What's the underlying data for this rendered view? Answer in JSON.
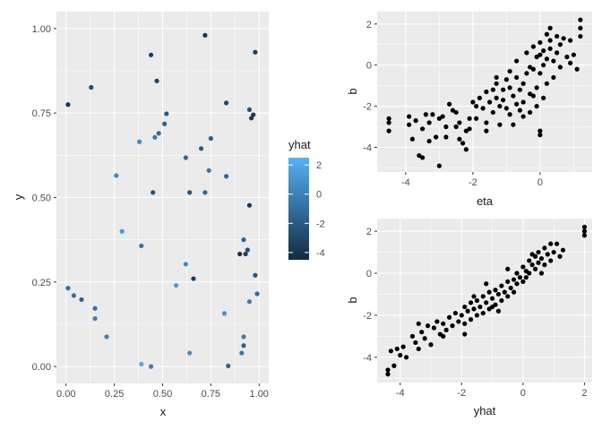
{
  "chart_data": [
    {
      "type": "scatter",
      "xlabel": "x",
      "ylabel": "y",
      "xlim": [
        -0.05,
        1.05
      ],
      "ylim": [
        -0.05,
        1.05
      ],
      "xticks": [
        0,
        0.25,
        0.5,
        0.75,
        1
      ],
      "xtick_labels": [
        "0.00",
        "0.25",
        "0.50",
        "0.75",
        "1.00"
      ],
      "yticks": [
        0,
        0.25,
        0.5,
        0.75,
        1
      ],
      "ytick_labels": [
        "0.00",
        "0.25",
        "0.50",
        "0.75",
        "1.00"
      ],
      "grid": true,
      "color_by": "yhat",
      "legend": {
        "title": "yhat",
        "placement": "right",
        "ticks": [
          2,
          0,
          -2,
          -4
        ],
        "tick_labels": [
          "2",
          "0",
          "-2",
          "-4"
        ],
        "range": [
          -4.5,
          2.5
        ],
        "color_low": "#132B43",
        "color_high": "#56B1F7"
      },
      "points": [
        {
          "x": 0.01,
          "y": 0.775,
          "yhat": -3.8
        },
        {
          "x": 0.13,
          "y": 0.826,
          "yhat": -2.8
        },
        {
          "x": 0.44,
          "y": 0.922,
          "yhat": -3.6
        },
        {
          "x": 0.47,
          "y": 0.845,
          "yhat": -3.2
        },
        {
          "x": 0.72,
          "y": 0.98,
          "yhat": -4.0
        },
        {
          "x": 0.98,
          "y": 0.93,
          "yhat": -3.4
        },
        {
          "x": 0.83,
          "y": 0.78,
          "yhat": -3.0
        },
        {
          "x": 0.95,
          "y": 0.76,
          "yhat": -2.6
        },
        {
          "x": 0.97,
          "y": 0.745,
          "yhat": -3.6
        },
        {
          "x": 0.96,
          "y": 0.735,
          "yhat": -3.8
        },
        {
          "x": 0.52,
          "y": 0.748,
          "yhat": -2.2
        },
        {
          "x": 0.51,
          "y": 0.718,
          "yhat": -1.6
        },
        {
          "x": 0.48,
          "y": 0.69,
          "yhat": -1.2
        },
        {
          "x": 0.46,
          "y": 0.678,
          "yhat": -0.6
        },
        {
          "x": 0.38,
          "y": 0.665,
          "yhat": 0.5
        },
        {
          "x": 0.75,
          "y": 0.675,
          "yhat": -1.8
        },
        {
          "x": 0.7,
          "y": 0.645,
          "yhat": -2.2
        },
        {
          "x": 0.62,
          "y": 0.618,
          "yhat": -1.4
        },
        {
          "x": 0.74,
          "y": 0.58,
          "yhat": -0.6
        },
        {
          "x": 0.83,
          "y": 0.563,
          "yhat": -1.4
        },
        {
          "x": 0.26,
          "y": 0.565,
          "yhat": 0.2
        },
        {
          "x": 0.45,
          "y": 0.515,
          "yhat": -2.6
        },
        {
          "x": 0.64,
          "y": 0.515,
          "yhat": -2.4
        },
        {
          "x": 0.72,
          "y": 0.515,
          "yhat": -1.4
        },
        {
          "x": 0.95,
          "y": 0.477,
          "yhat": -4.0
        },
        {
          "x": 0.29,
          "y": 0.4,
          "yhat": 1.2
        },
        {
          "x": 0.39,
          "y": 0.357,
          "yhat": -0.8
        },
        {
          "x": 0.92,
          "y": 0.375,
          "yhat": -1.8
        },
        {
          "x": 0.94,
          "y": 0.345,
          "yhat": -2.6
        },
        {
          "x": 0.9,
          "y": 0.333,
          "yhat": -4.0
        },
        {
          "x": 0.93,
          "y": 0.333,
          "yhat": -3.4
        },
        {
          "x": 0.62,
          "y": 0.303,
          "yhat": 0.5
        },
        {
          "x": 0.98,
          "y": 0.27,
          "yhat": -2.2
        },
        {
          "x": 0.66,
          "y": 0.26,
          "yhat": -3.6
        },
        {
          "x": 0.57,
          "y": 0.24,
          "yhat": 1.4
        },
        {
          "x": 0.01,
          "y": 0.232,
          "yhat": -1.0
        },
        {
          "x": 0.04,
          "y": 0.21,
          "yhat": -1.0
        },
        {
          "x": 0.08,
          "y": 0.198,
          "yhat": -1.8
        },
        {
          "x": 0.99,
          "y": 0.215,
          "yhat": -1.2
        },
        {
          "x": 0.95,
          "y": 0.192,
          "yhat": -0.4
        },
        {
          "x": 0.15,
          "y": 0.172,
          "yhat": -0.8
        },
        {
          "x": 0.15,
          "y": 0.142,
          "yhat": -0.2
        },
        {
          "x": 0.82,
          "y": 0.157,
          "yhat": 0.6
        },
        {
          "x": 0.21,
          "y": 0.088,
          "yhat": -0.2
        },
        {
          "x": 0.92,
          "y": 0.088,
          "yhat": -0.6
        },
        {
          "x": 0.92,
          "y": 0.062,
          "yhat": -1.8
        },
        {
          "x": 0.64,
          "y": 0.04,
          "yhat": 0.8
        },
        {
          "x": 0.91,
          "y": 0.04,
          "yhat": -0.6
        },
        {
          "x": 0.39,
          "y": 0.007,
          "yhat": 2.0
        },
        {
          "x": 0.44,
          "y": 0.0,
          "yhat": -0.2
        },
        {
          "x": 0.84,
          "y": 0.002,
          "yhat": -1.6
        }
      ]
    },
    {
      "type": "scatter",
      "xlabel": "eta",
      "ylabel": "b",
      "xlim": [
        -4.85,
        1.55
      ],
      "ylim": [
        -5.2,
        2.6
      ],
      "xticks": [
        -4,
        -2,
        0
      ],
      "xtick_labels": [
        "-4",
        "-2",
        "0"
      ],
      "yticks": [
        2,
        0,
        -2,
        -4
      ],
      "ytick_labels": [
        "2",
        "0",
        "-2",
        "-4"
      ],
      "grid": true,
      "points": [
        [
          -4.5,
          -2.6
        ],
        [
          -4.5,
          -2.8
        ],
        [
          -4.5,
          -3.2
        ],
        [
          -3.9,
          -2.5
        ],
        [
          -3.9,
          -2.9
        ],
        [
          -3.8,
          -3.6
        ],
        [
          -3.7,
          -2.7
        ],
        [
          -3.6,
          -4.4
        ],
        [
          -3.5,
          -4.5
        ],
        [
          -3.5,
          -3.1
        ],
        [
          -3.4,
          -2.4
        ],
        [
          -3.3,
          -2.8
        ],
        [
          -3.3,
          -3.7
        ],
        [
          -3.2,
          -2.4
        ],
        [
          -3.1,
          -3.5
        ],
        [
          -3.0,
          -2.6
        ],
        [
          -3.0,
          -4.9
        ],
        [
          -2.9,
          -2.5
        ],
        [
          -2.8,
          -3.5
        ],
        [
          -2.7,
          -1.9
        ],
        [
          -2.6,
          -2.2
        ],
        [
          -2.5,
          -3.0
        ],
        [
          -2.4,
          -2.8
        ],
        [
          -2.4,
          -3.6
        ],
        [
          -2.3,
          -3.8
        ],
        [
          -2.2,
          -3.2
        ],
        [
          -2.2,
          -4.1
        ],
        [
          -2.1,
          -2.6
        ],
        [
          -2.1,
          -3.1
        ],
        [
          -1.9,
          -2.0
        ],
        [
          -1.8,
          -1.6
        ],
        [
          -1.7,
          -2.1
        ],
        [
          -1.6,
          -2.8
        ],
        [
          -1.6,
          -3.2
        ],
        [
          -1.5,
          -1.8
        ],
        [
          -1.4,
          -1.2
        ],
        [
          -1.4,
          -2.3
        ],
        [
          -1.3,
          -0.9
        ],
        [
          -1.3,
          -1.6
        ],
        [
          -1.2,
          -2.0
        ],
        [
          -1.2,
          -2.9
        ],
        [
          -1.1,
          -1.2
        ],
        [
          -1.1,
          -1.7
        ],
        [
          -1.0,
          -0.7
        ],
        [
          -1.0,
          -2.1
        ],
        [
          -0.9,
          -0.3
        ],
        [
          -0.9,
          -1.1
        ],
        [
          -0.9,
          -2.4
        ],
        [
          -0.8,
          -1.5
        ],
        [
          -0.8,
          -2.9
        ],
        [
          -0.7,
          0.2
        ],
        [
          -0.7,
          -0.6
        ],
        [
          -0.7,
          -1.9
        ],
        [
          -0.6,
          -1.2
        ],
        [
          -0.6,
          -2.2
        ],
        [
          -0.5,
          -1.8
        ],
        [
          -0.5,
          -2.5
        ],
        [
          -0.4,
          0.6
        ],
        [
          -0.4,
          -0.4
        ],
        [
          -0.3,
          -1.4
        ],
        [
          -0.3,
          -2.3
        ],
        [
          -0.2,
          0.9
        ],
        [
          -0.2,
          -0.2
        ],
        [
          -0.2,
          -1.5
        ],
        [
          -0.1,
          0.4
        ],
        [
          -0.1,
          -1.1
        ],
        [
          -0.1,
          -2.0
        ],
        [
          0.0,
          1.1
        ],
        [
          0.0,
          0.5
        ],
        [
          0.0,
          -0.4
        ],
        [
          0.0,
          -3.2
        ],
        [
          0.0,
          -3.4
        ],
        [
          0.1,
          0.7
        ],
        [
          0.1,
          0.0
        ],
        [
          0.1,
          -1.6
        ],
        [
          0.2,
          1.5
        ],
        [
          0.2,
          0.3
        ],
        [
          0.2,
          -0.9
        ],
        [
          0.3,
          1.8
        ],
        [
          0.3,
          0.8
        ],
        [
          0.4,
          0.2
        ],
        [
          0.4,
          -0.6
        ],
        [
          0.5,
          1.4
        ],
        [
          0.5,
          0.6
        ],
        [
          0.6,
          1.0
        ],
        [
          0.6,
          -0.1
        ],
        [
          0.7,
          1.3
        ],
        [
          0.8,
          0.4
        ],
        [
          0.9,
          1.2
        ],
        [
          0.9,
          0.1
        ],
        [
          1.0,
          0.5
        ],
        [
          1.1,
          -0.2
        ],
        [
          1.2,
          2.2
        ],
        [
          1.2,
          1.8
        ],
        [
          1.2,
          1.4
        ],
        [
          -1.3,
          -0.6
        ],
        [
          -1.6,
          -1.3
        ],
        [
          -2.0,
          -1.8
        ],
        [
          -2.5,
          -2.3
        ],
        [
          -0.5,
          -0.9
        ],
        [
          -0.3,
          -0.1
        ],
        [
          0.3,
          1.2
        ],
        [
          -1.9,
          -2.6
        ],
        [
          -2.8,
          -3.0
        ]
      ]
    },
    {
      "type": "scatter",
      "xlabel": "yhat",
      "ylabel": "b",
      "xlim": [
        -4.75,
        2.25
      ],
      "ylim": [
        -5.2,
        2.6
      ],
      "xticks": [
        -4,
        -2,
        0,
        2
      ],
      "xtick_labels": [
        "-4",
        "-2",
        "0",
        "2"
      ],
      "yticks": [
        2,
        0,
        -2,
        -4
      ],
      "ytick_labels": [
        "2",
        "0",
        "-2",
        "-4"
      ],
      "grid": true,
      "points": [
        [
          -4.4,
          -4.6
        ],
        [
          -4.4,
          -4.8
        ],
        [
          -4.3,
          -3.7
        ],
        [
          -4.2,
          -4.4
        ],
        [
          -4.1,
          -3.6
        ],
        [
          -4.0,
          -3.9
        ],
        [
          -3.9,
          -3.5
        ],
        [
          -3.8,
          -4.0
        ],
        [
          -3.6,
          -3.0
        ],
        [
          -3.5,
          -3.3
        ],
        [
          -3.4,
          -3.6
        ],
        [
          -3.3,
          -2.8
        ],
        [
          -3.2,
          -3.1
        ],
        [
          -3.1,
          -2.5
        ],
        [
          -3.0,
          -3.4
        ],
        [
          -2.9,
          -2.6
        ],
        [
          -2.8,
          -2.3
        ],
        [
          -2.7,
          -2.9
        ],
        [
          -2.6,
          -2.4
        ],
        [
          -2.5,
          -2.7
        ],
        [
          -2.4,
          -2.1
        ],
        [
          -2.3,
          -2.5
        ],
        [
          -2.2,
          -1.9
        ],
        [
          -2.1,
          -2.3
        ],
        [
          -2.0,
          -2.0
        ],
        [
          -1.9,
          -1.6
        ],
        [
          -1.9,
          -2.4
        ],
        [
          -1.8,
          -1.8
        ],
        [
          -1.7,
          -1.4
        ],
        [
          -1.7,
          -2.2
        ],
        [
          -1.6,
          -1.7
        ],
        [
          -1.5,
          -1.3
        ],
        [
          -1.5,
          -2.0
        ],
        [
          -1.4,
          -1.6
        ],
        [
          -1.3,
          -1.1
        ],
        [
          -1.3,
          -1.9
        ],
        [
          -1.2,
          -1.4
        ],
        [
          -1.1,
          -0.9
        ],
        [
          -1.1,
          -1.7
        ],
        [
          -1.0,
          -1.2
        ],
        [
          -0.9,
          -0.8
        ],
        [
          -0.9,
          -1.5
        ],
        [
          -0.8,
          -1.0
        ],
        [
          -0.7,
          -0.6
        ],
        [
          -0.7,
          -1.3
        ],
        [
          -0.6,
          -0.9
        ],
        [
          -0.5,
          -0.4
        ],
        [
          -0.5,
          -1.1
        ],
        [
          -0.4,
          -0.7
        ],
        [
          -0.3,
          -0.3
        ],
        [
          -0.3,
          -0.9
        ],
        [
          -0.2,
          0.0
        ],
        [
          -0.2,
          -0.5
        ],
        [
          -0.1,
          -0.2
        ],
        [
          0.0,
          0.3
        ],
        [
          0.0,
          -0.4
        ],
        [
          0.1,
          0.1
        ],
        [
          0.1,
          -0.2
        ],
        [
          0.2,
          0.6
        ],
        [
          0.2,
          0.0
        ],
        [
          0.3,
          0.4
        ],
        [
          0.4,
          0.8
        ],
        [
          0.4,
          0.2
        ],
        [
          0.5,
          1.0
        ],
        [
          0.5,
          0.5
        ],
        [
          0.6,
          0.7
        ],
        [
          0.7,
          1.2
        ],
        [
          0.7,
          0.4
        ],
        [
          0.8,
          0.9
        ],
        [
          0.9,
          1.4
        ],
        [
          0.9,
          0.6
        ],
        [
          1.0,
          1.0
        ],
        [
          1.1,
          1.4
        ],
        [
          1.2,
          0.8
        ],
        [
          1.3,
          1.1
        ],
        [
          2.0,
          2.2
        ],
        [
          2.0,
          2.0
        ],
        [
          2.0,
          1.8
        ],
        [
          -1.6,
          -1.1
        ],
        [
          -1.2,
          -0.5
        ],
        [
          -0.8,
          -1.8
        ],
        [
          -2.6,
          -3.0
        ],
        [
          -3.4,
          -2.4
        ],
        [
          -0.5,
          0.2
        ],
        [
          0.3,
          0.9
        ],
        [
          -1.9,
          -2.9
        ],
        [
          -1.0,
          -1.6
        ],
        [
          0.6,
          0.0
        ]
      ]
    }
  ]
}
